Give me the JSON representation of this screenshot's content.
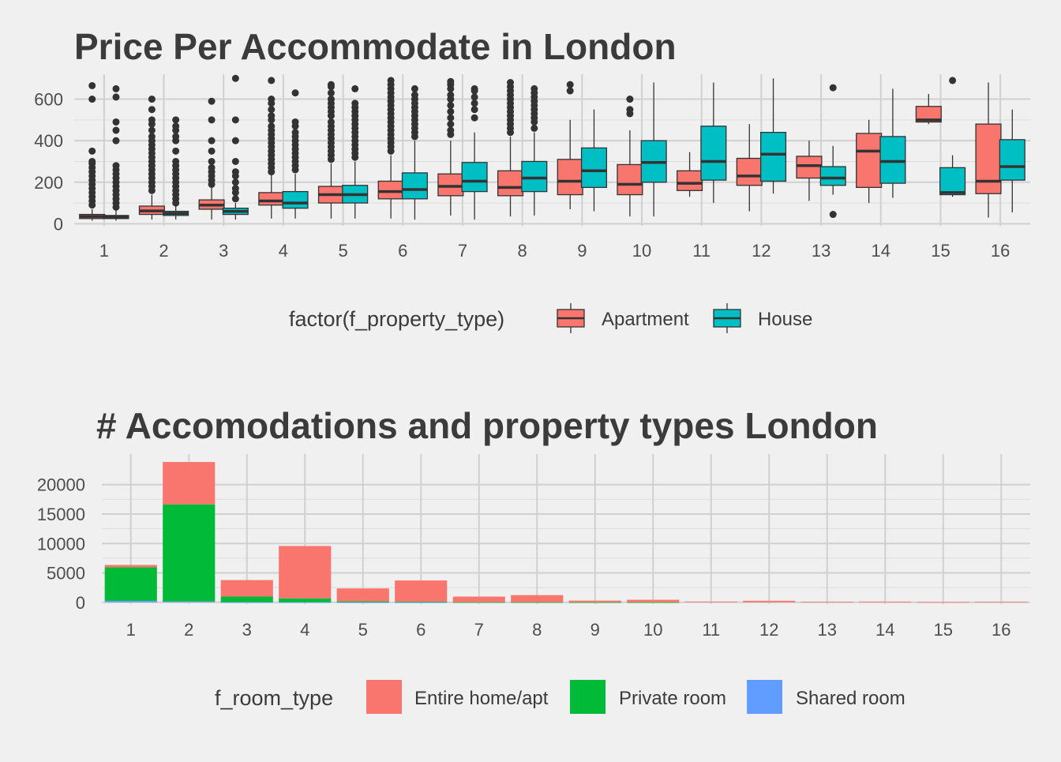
{
  "chart_data": [
    {
      "type": "boxplot",
      "title": "Price Per Accommodate in London",
      "xlabel": "",
      "ylabel": "",
      "categories": [
        "1",
        "2",
        "3",
        "4",
        "5",
        "6",
        "7",
        "8",
        "9",
        "10",
        "11",
        "12",
        "13",
        "14",
        "15",
        "16"
      ],
      "y_ticks": [
        0,
        200,
        400,
        600
      ],
      "ylim": [
        -10,
        720
      ],
      "grid": true,
      "legend": {
        "title": "factor(f_property_type)",
        "position": "bottom",
        "entries": [
          {
            "name": "Apartment",
            "color": "#F8766D"
          },
          {
            "name": "House",
            "color": "#00BFC4"
          }
        ]
      },
      "series": [
        {
          "name": "Apartment",
          "color": "#F8766D",
          "boxes": [
            {
              "x": "1",
              "q1": 25,
              "median": 35,
              "q3": 45,
              "lo": 15,
              "hi": 70,
              "outliers": [
                90,
                110,
                130,
                150,
                170,
                190,
                210,
                230,
                250,
                270,
                290,
                300,
                350,
                600,
                665
              ]
            },
            {
              "x": "2",
              "q1": 45,
              "median": 62,
              "q3": 85,
              "lo": 20,
              "hi": 140,
              "outliers": [
                160,
                180,
                200,
                220,
                240,
                260,
                280,
                300,
                320,
                340,
                360,
                380,
                400,
                420,
                450,
                480,
                500,
                550,
                600
              ]
            },
            {
              "x": "3",
              "q1": 70,
              "median": 90,
              "q3": 115,
              "lo": 20,
              "hi": 175,
              "outliers": [
                190,
                210,
                230,
                250,
                270,
                300,
                350,
                400,
                500,
                590
              ]
            },
            {
              "x": "4",
              "q1": 90,
              "median": 110,
              "q3": 150,
              "lo": 25,
              "hi": 235,
              "outliers": [
                250,
                270,
                290,
                310,
                330,
                350,
                370,
                390,
                410,
                430,
                450,
                470,
                500,
                520,
                550,
                580,
                600,
                690
              ]
            },
            {
              "x": "5",
              "q1": 100,
              "median": 140,
              "q3": 180,
              "lo": 25,
              "hi": 290,
              "outliers": [
                310,
                330,
                350,
                370,
                390,
                410,
                430,
                450,
                470,
                490,
                520,
                540,
                560,
                580,
                600,
                630,
                660,
                670
              ]
            },
            {
              "x": "6",
              "q1": 120,
              "median": 155,
              "q3": 205,
              "lo": 25,
              "hi": 330,
              "outliers": [
                350,
                370,
                390,
                410,
                430,
                450,
                470,
                490,
                510,
                530,
                550,
                570,
                590,
                610,
                630,
                650,
                670,
                690
              ]
            },
            {
              "x": "7",
              "q1": 135,
              "median": 180,
              "q3": 240,
              "lo": 40,
              "hi": 400,
              "outliers": [
                430,
                450,
                480,
                510,
                540,
                570,
                600,
                620,
                650,
                670,
                685
              ]
            },
            {
              "x": "8",
              "q1": 135,
              "median": 175,
              "q3": 255,
              "lo": 35,
              "hi": 420,
              "outliers": [
                440,
                460,
                480,
                500,
                520,
                540,
                560,
                580,
                600,
                620,
                640,
                660,
                680
              ]
            },
            {
              "x": "9",
              "q1": 140,
              "median": 205,
              "q3": 310,
              "lo": 70,
              "hi": 500,
              "outliers": [
                640,
                670
              ]
            },
            {
              "x": "10",
              "q1": 140,
              "median": 190,
              "q3": 285,
              "lo": 35,
              "hi": 450,
              "outliers": [
                530,
                550,
                600
              ]
            },
            {
              "x": "11",
              "q1": 160,
              "median": 195,
              "q3": 255,
              "lo": 130,
              "hi": 345,
              "outliers": []
            },
            {
              "x": "12",
              "q1": 185,
              "median": 230,
              "q3": 315,
              "lo": 60,
              "hi": 480,
              "outliers": []
            },
            {
              "x": "13",
              "q1": 220,
              "median": 280,
              "q3": 325,
              "lo": 110,
              "hi": 400,
              "outliers": []
            },
            {
              "x": "14",
              "q1": 175,
              "median": 350,
              "q3": 435,
              "lo": 100,
              "hi": 500,
              "outliers": []
            },
            {
              "x": "15",
              "q1": 490,
              "median": 500,
              "q3": 565,
              "lo": 480,
              "hi": 625,
              "outliers": []
            },
            {
              "x": "16",
              "q1": 145,
              "median": 205,
              "q3": 480,
              "lo": 30,
              "hi": 680,
              "outliers": []
            }
          ]
        },
        {
          "name": "House",
          "color": "#00BFC4",
          "boxes": [
            {
              "x": "1",
              "q1": 25,
              "median": 32,
              "q3": 40,
              "lo": 15,
              "hi": 65,
              "outliers": [
                80,
                100,
                120,
                140,
                160,
                180,
                200,
                220,
                240,
                260,
                280,
                400,
                450,
                490,
                610,
                650
              ]
            },
            {
              "x": "2",
              "q1": 40,
              "median": 50,
              "q3": 60,
              "lo": 20,
              "hi": 85,
              "outliers": [
                100,
                120,
                140,
                160,
                180,
                200,
                220,
                240,
                260,
                280,
                300,
                350,
                400,
                420,
                450,
                470,
                500
              ]
            },
            {
              "x": "3",
              "q1": 45,
              "median": 60,
              "q3": 75,
              "lo": 20,
              "hi": 100,
              "outliers": [
                120,
                150,
                170,
                200,
                230,
                250,
                300,
                400,
                500,
                700
              ]
            },
            {
              "x": "4",
              "q1": 75,
              "median": 100,
              "q3": 155,
              "lo": 25,
              "hi": 240,
              "outliers": [
                260,
                280,
                300,
                320,
                340,
                360,
                380,
                400,
                420,
                440,
                470,
                490,
                630
              ]
            },
            {
              "x": "5",
              "q1": 100,
              "median": 140,
              "q3": 185,
              "lo": 25,
              "hi": 300,
              "outliers": [
                320,
                340,
                360,
                380,
                400,
                420,
                440,
                460,
                480,
                500,
                520,
                540,
                560,
                580,
                650
              ]
            },
            {
              "x": "6",
              "q1": 120,
              "median": 165,
              "q3": 245,
              "lo": 20,
              "hi": 400,
              "outliers": [
                420,
                440,
                460,
                480,
                500,
                520,
                540,
                560,
                580,
                600,
                620,
                650
              ]
            },
            {
              "x": "7",
              "q1": 155,
              "median": 205,
              "q3": 295,
              "lo": 20,
              "hi": 440,
              "outliers": [
                510,
                550,
                580,
                610,
                640,
                650
              ]
            },
            {
              "x": "8",
              "q1": 155,
              "median": 220,
              "q3": 300,
              "lo": 40,
              "hi": 440,
              "outliers": [
                460,
                490,
                510,
                530,
                550,
                570,
                590,
                610,
                630,
                650
              ]
            },
            {
              "x": "9",
              "q1": 175,
              "median": 255,
              "q3": 365,
              "lo": 60,
              "hi": 550,
              "outliers": []
            },
            {
              "x": "10",
              "q1": 200,
              "median": 295,
              "q3": 400,
              "lo": 35,
              "hi": 680,
              "outliers": []
            },
            {
              "x": "11",
              "q1": 210,
              "median": 300,
              "q3": 470,
              "lo": 100,
              "hi": 680,
              "outliers": []
            },
            {
              "x": "12",
              "q1": 205,
              "median": 335,
              "q3": 440,
              "lo": 145,
              "hi": 700,
              "outliers": []
            },
            {
              "x": "13",
              "q1": 185,
              "median": 220,
              "q3": 275,
              "lo": 140,
              "hi": 375,
              "outliers": [
                45,
                655
              ]
            },
            {
              "x": "14",
              "q1": 195,
              "median": 300,
              "q3": 420,
              "lo": 125,
              "hi": 650,
              "outliers": []
            },
            {
              "x": "15",
              "q1": 140,
              "median": 150,
              "q3": 270,
              "lo": 130,
              "hi": 330,
              "outliers": [
                690
              ]
            },
            {
              "x": "16",
              "q1": 210,
              "median": 275,
              "q3": 405,
              "lo": 55,
              "hi": 550,
              "outliers": []
            }
          ]
        }
      ]
    },
    {
      "type": "bar",
      "stacked": true,
      "title": "# Accomodations and property types London",
      "xlabel": "",
      "ylabel": "",
      "categories": [
        "1",
        "2",
        "3",
        "4",
        "5",
        "6",
        "7",
        "8",
        "9",
        "10",
        "11",
        "12",
        "13",
        "14",
        "15",
        "16"
      ],
      "y_ticks": [
        0,
        5000,
        10000,
        15000,
        20000
      ],
      "ylim": [
        -300,
        25200
      ],
      "grid": true,
      "legend": {
        "title": "f_room_type",
        "position": "bottom",
        "entries": [
          {
            "name": "Entire home/apt",
            "color": "#F8766D"
          },
          {
            "name": "Private room",
            "color": "#00BA38"
          },
          {
            "name": "Shared room",
            "color": "#619CFF"
          }
        ]
      },
      "series": [
        {
          "name": "Shared room",
          "color": "#619CFF",
          "values": [
            250,
            150,
            30,
            20,
            10,
            10,
            0,
            0,
            0,
            0,
            0,
            0,
            0,
            0,
            0,
            0
          ]
        },
        {
          "name": "Private room",
          "color": "#00BA38",
          "values": [
            5700,
            16500,
            950,
            650,
            150,
            100,
            20,
            20,
            10,
            10,
            0,
            0,
            0,
            0,
            0,
            0
          ]
        },
        {
          "name": "Entire home/apt",
          "color": "#F8766D",
          "values": [
            400,
            7200,
            2800,
            8900,
            2200,
            3600,
            950,
            1200,
            280,
            420,
            130,
            260,
            90,
            120,
            50,
            90
          ]
        }
      ]
    }
  ]
}
